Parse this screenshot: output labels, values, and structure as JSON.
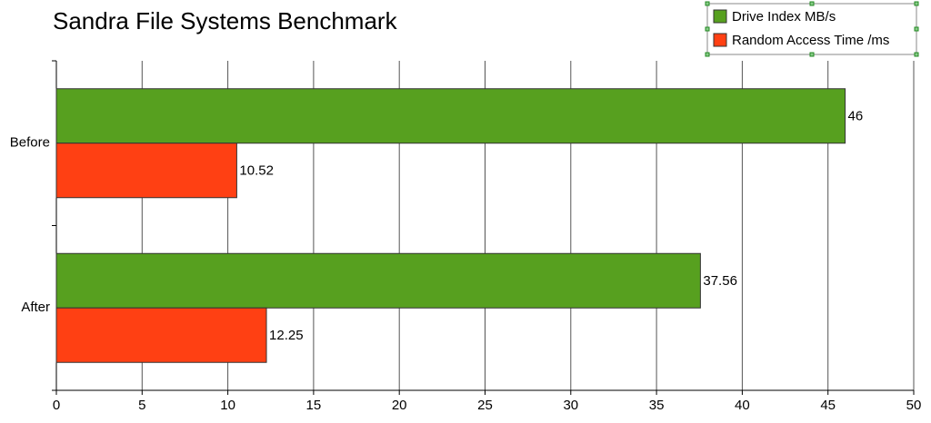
{
  "chart_data": {
    "type": "hbar",
    "title": "Sandra File Systems Benchmark",
    "categories": [
      "Before",
      "After"
    ],
    "series": [
      {
        "name": "Drive Index MB/s",
        "color": "#57a01f",
        "values": [
          46,
          37.56
        ]
      },
      {
        "name": "Random Access Time /ms",
        "color": "#ff4013",
        "values": [
          10.52,
          12.25
        ]
      }
    ],
    "xlim": [
      0,
      50
    ],
    "xticks": [
      0,
      5,
      10,
      15,
      20,
      25,
      30,
      35,
      40,
      45,
      50
    ],
    "grid": true,
    "data_labels": true,
    "legend": "top-right"
  }
}
